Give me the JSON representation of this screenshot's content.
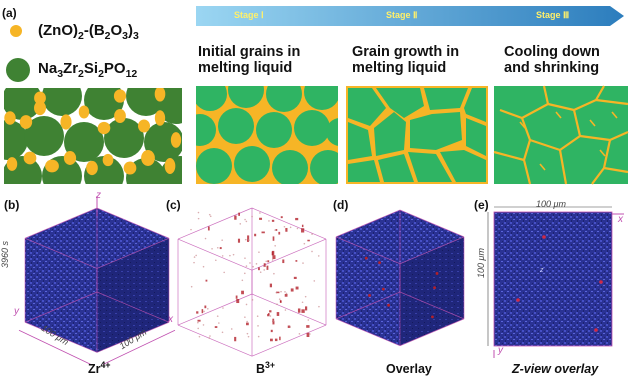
{
  "colors": {
    "glass_phase": "#f6b526",
    "grain": "#2fb463",
    "legend_grain": "#3f8233",
    "lattice_blue": "#2d36a0",
    "arrow_start": "#8fd2f0",
    "arrow_end": "#2c7dbd",
    "axis_pink": "#c050b0",
    "boron_red": "#b3202a"
  },
  "panel_a": {
    "label": "(a)",
    "legend": [
      {
        "formula": "(ZnO)2-(B2O3)3",
        "swatch": "glass_phase"
      },
      {
        "formula": "Na3Zr2Si2PO12",
        "swatch": "grain"
      }
    ],
    "arrow": {
      "stages": [
        {
          "tag": "Stage Ⅰ",
          "title_lines": [
            "Initial grains in",
            "melting liquid"
          ]
        },
        {
          "tag": "Stage Ⅱ",
          "title_lines": [
            "Grain growth in",
            "melting liquid"
          ]
        },
        {
          "tag": "Stage Ⅲ",
          "title_lines": [
            "Cooling down",
            "and shrinking"
          ]
        }
      ]
    }
  },
  "panels_3d": [
    {
      "label": "(b)",
      "caption_base": "Zr",
      "caption_sup": "4+",
      "ion": "zr-map",
      "axes": {
        "z": "z",
        "x": "x",
        "y": "y"
      },
      "dims": {
        "height": "3960 s",
        "width": "100 μm",
        "depth": "100 μm"
      }
    },
    {
      "label": "(c)",
      "caption_base": "B",
      "caption_sup": "3+",
      "ion": "b-map"
    },
    {
      "label": "(d)",
      "caption_base": "Overlay",
      "caption_sup": "",
      "ion": "overlay"
    },
    {
      "label": "(e)",
      "caption_base": "Z-view overlay",
      "caption_sup": "",
      "ion": "z-view",
      "axes": {
        "x": "x",
        "y": "y",
        "z": "z"
      },
      "dims": {
        "width": "100 μm",
        "height": "100 μm"
      }
    }
  ]
}
